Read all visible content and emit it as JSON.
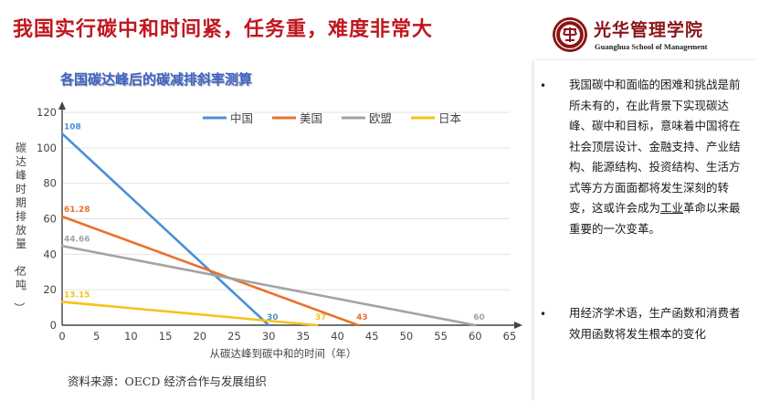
{
  "slide": {
    "title": "我国实行碳中和时间紧，任务重，难度非常大",
    "logo": {
      "name": "光华管理学院",
      "english": "Guanghua School of Management"
    },
    "source_note": "资料来源：OECD 经济合作与发展组织"
  },
  "chart_data": {
    "type": "line",
    "title": "各国碳达峰后的碳减排斜率测算",
    "xlabel": "从碳达峰到碳中和的时间（年）",
    "ylabel": "碳达峰时期排放量（亿吨）",
    "xlim": [
      0,
      65
    ],
    "ylim": [
      0,
      120
    ],
    "x_ticks": [
      "0",
      "5",
      "10",
      "15",
      "20",
      "25",
      "30",
      "35",
      "40",
      "45",
      "50",
      "55",
      "60",
      "65"
    ],
    "y_ticks": [
      "0",
      "20",
      "40",
      "60",
      "80",
      "100",
      "120"
    ],
    "grid": true,
    "legend_position": "top",
    "series": [
      {
        "name": "中国",
        "color": "#4a8fd6",
        "x": [
          0,
          30
        ],
        "y": [
          108,
          0
        ],
        "start_label": "108",
        "end_label": "30"
      },
      {
        "name": "美国",
        "color": "#e8712c",
        "x": [
          0,
          43
        ],
        "y": [
          61.28,
          0
        ],
        "start_label": "61.28",
        "end_label": "43"
      },
      {
        "name": "欧盟",
        "color": "#a3a3a3",
        "x": [
          0,
          60
        ],
        "y": [
          44.66,
          0
        ],
        "start_label": "44.66",
        "end_label": "60"
      },
      {
        "name": "日本",
        "color": "#f7c21a",
        "x": [
          0,
          37
        ],
        "y": [
          13.15,
          0
        ],
        "start_label": "13.15",
        "end_label": "37"
      }
    ]
  },
  "panel": {
    "p1_part1": "我国碳中和面临的困难和挑战是前所未有的，在此背景下实现碳达峰、碳中和目标，意味着中国将在社会顶层设计、金融支持、产业结构、能源结构、投资结构、生活方式等方方面面都将发生深刻的转变，这或许会成为",
    "p1_ul": "工业",
    "p1_part2": "革命以来最重要的一次变革。",
    "p2": "用经济学术语，生产函数和消费者效用函数将发生根本的变化",
    "bullet_char": "•"
  }
}
